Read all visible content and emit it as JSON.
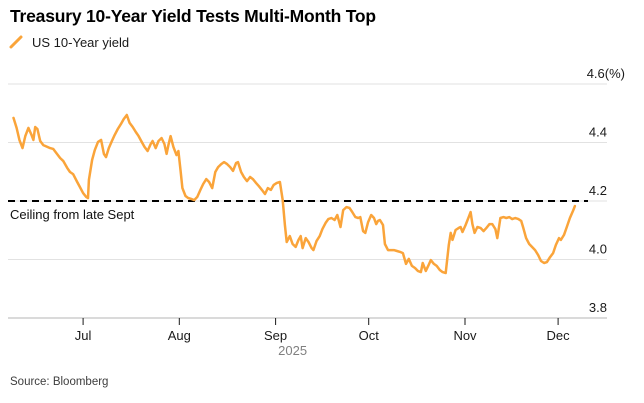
{
  "header": {
    "title": "Treasury 10-Year Yield Tests Multi-Month Top",
    "legend": {
      "marker_icon": "orange-slash-line-marker",
      "label": "US 10-Year yield"
    }
  },
  "footer": {
    "source": "Source: Bloomberg"
  },
  "colors": {
    "series_orange": "#FAA43A",
    "gridline": "#e2e2e2",
    "axis_line": "#c4c4c4",
    "tick_mark": "#1a1a1a",
    "tick_label": "#1a1a1a",
    "year_label": "#808080",
    "ceiling_line": "#000000",
    "title_text": "#000000",
    "background": "#ffffff"
  },
  "chart_data": {
    "type": "line",
    "title": "Treasury 10-Year Yield Tests Multi-Month Top",
    "x_unit": "days since 2025-06-01 (mid-June 2025 through early December 2025)",
    "y_unit": "(%)",
    "ylim": [
      3.8,
      4.6
    ],
    "grid": "horizontal",
    "legend_position": "top-left",
    "x_ticks": [
      {
        "day": 30,
        "label": "Jul"
      },
      {
        "day": 61,
        "label": "Aug"
      },
      {
        "day": 92,
        "label": "Sep"
      },
      {
        "day": 122,
        "label": "Oct"
      },
      {
        "day": 153,
        "label": "Nov"
      },
      {
        "day": 183,
        "label": "Dec"
      }
    ],
    "x_year_label": "2025",
    "y_ticks": [
      4.6,
      4.4,
      4.2,
      4.0,
      3.8
    ],
    "ceiling": {
      "value": 4.2,
      "label": "Ceiling from late Sept",
      "style": "dashed-black"
    },
    "series": [
      {
        "name": "US 10-Year yield",
        "color": "#FAA43A",
        "points": [
          [
            7.6,
            4.484
          ],
          [
            8.6,
            4.45
          ],
          [
            9.5,
            4.409
          ],
          [
            10.5,
            4.381
          ],
          [
            11.4,
            4.422
          ],
          [
            12.4,
            4.45
          ],
          [
            13.4,
            4.426
          ],
          [
            14.0,
            4.409
          ],
          [
            14.6,
            4.453
          ],
          [
            15.3,
            4.446
          ],
          [
            16.2,
            4.405
          ],
          [
            17.2,
            4.391
          ],
          [
            18.5,
            4.385
          ],
          [
            19.4,
            4.381
          ],
          [
            20.4,
            4.378
          ],
          [
            21.4,
            4.364
          ],
          [
            22.6,
            4.347
          ],
          [
            23.6,
            4.337
          ],
          [
            24.9,
            4.313
          ],
          [
            25.8,
            4.299
          ],
          [
            26.8,
            4.292
          ],
          [
            28.1,
            4.265
          ],
          [
            29.0,
            4.248
          ],
          [
            30.0,
            4.227
          ],
          [
            31.0,
            4.214
          ],
          [
            31.6,
            4.21
          ],
          [
            31.9,
            4.272
          ],
          [
            32.9,
            4.34
          ],
          [
            33.8,
            4.374
          ],
          [
            34.8,
            4.402
          ],
          [
            35.8,
            4.409
          ],
          [
            36.7,
            4.361
          ],
          [
            37.4,
            4.35
          ],
          [
            38.3,
            4.381
          ],
          [
            39.3,
            4.405
          ],
          [
            40.2,
            4.426
          ],
          [
            41.2,
            4.446
          ],
          [
            42.2,
            4.463
          ],
          [
            43.1,
            4.48
          ],
          [
            44.1,
            4.494
          ],
          [
            45.0,
            4.467
          ],
          [
            46.0,
            4.453
          ],
          [
            47.0,
            4.436
          ],
          [
            47.9,
            4.422
          ],
          [
            48.9,
            4.402
          ],
          [
            49.8,
            4.385
          ],
          [
            50.8,
            4.371
          ],
          [
            51.8,
            4.395
          ],
          [
            52.4,
            4.405
          ],
          [
            53.4,
            4.381
          ],
          [
            54.3,
            4.405
          ],
          [
            55.3,
            4.415
          ],
          [
            56.2,
            4.395
          ],
          [
            56.9,
            4.361
          ],
          [
            57.5,
            4.391
          ],
          [
            58.2,
            4.422
          ],
          [
            59.1,
            4.385
          ],
          [
            60.1,
            4.357
          ],
          [
            60.7,
            4.371
          ],
          [
            61.4,
            4.306
          ],
          [
            62.0,
            4.244
          ],
          [
            63.0,
            4.217
          ],
          [
            63.9,
            4.21
          ],
          [
            64.9,
            4.207
          ],
          [
            65.8,
            4.203
          ],
          [
            66.8,
            4.214
          ],
          [
            67.8,
            4.238
          ],
          [
            68.7,
            4.258
          ],
          [
            69.7,
            4.275
          ],
          [
            70.6,
            4.265
          ],
          [
            71.6,
            4.244
          ],
          [
            72.6,
            4.299
          ],
          [
            73.5,
            4.316
          ],
          [
            74.5,
            4.326
          ],
          [
            75.4,
            4.333
          ],
          [
            76.4,
            4.326
          ],
          [
            77.4,
            4.316
          ],
          [
            78.3,
            4.303
          ],
          [
            79.3,
            4.33
          ],
          [
            79.9,
            4.333
          ],
          [
            80.9,
            4.299
          ],
          [
            81.8,
            4.282
          ],
          [
            82.8,
            4.268
          ],
          [
            83.8,
            4.282
          ],
          [
            84.7,
            4.275
          ],
          [
            85.7,
            4.262
          ],
          [
            86.6,
            4.251
          ],
          [
            87.6,
            4.238
          ],
          [
            88.6,
            4.224
          ],
          [
            89.5,
            4.244
          ],
          [
            90.5,
            4.238
          ],
          [
            91.4,
            4.255
          ],
          [
            92.4,
            4.262
          ],
          [
            93.4,
            4.265
          ],
          [
            94.3,
            4.203
          ],
          [
            95.0,
            4.118
          ],
          [
            95.6,
            4.06
          ],
          [
            96.6,
            4.08
          ],
          [
            97.5,
            4.053
          ],
          [
            98.5,
            4.043
          ],
          [
            99.4,
            4.067
          ],
          [
            100.1,
            4.08
          ],
          [
            100.7,
            4.039
          ],
          [
            101.7,
            4.073
          ],
          [
            102.6,
            4.06
          ],
          [
            103.6,
            4.039
          ],
          [
            104.2,
            4.032
          ],
          [
            105.2,
            4.063
          ],
          [
            106.2,
            4.08
          ],
          [
            107.1,
            4.104
          ],
          [
            108.1,
            4.125
          ],
          [
            109.0,
            4.138
          ],
          [
            110.0,
            4.142
          ],
          [
            111.0,
            4.135
          ],
          [
            111.9,
            4.152
          ],
          [
            112.9,
            4.111
          ],
          [
            113.8,
            4.169
          ],
          [
            114.8,
            4.179
          ],
          [
            115.8,
            4.176
          ],
          [
            116.7,
            4.162
          ],
          [
            117.7,
            4.145
          ],
          [
            118.6,
            4.142
          ],
          [
            119.3,
            4.145
          ],
          [
            120.2,
            4.097
          ],
          [
            120.9,
            4.091
          ],
          [
            121.8,
            4.128
          ],
          [
            122.8,
            4.152
          ],
          [
            123.7,
            4.142
          ],
          [
            124.4,
            4.121
          ],
          [
            125.0,
            4.132
          ],
          [
            125.6,
            4.135
          ],
          [
            126.6,
            4.118
          ],
          [
            127.2,
            4.053
          ],
          [
            128.2,
            4.032
          ],
          [
            130.1,
            4.032
          ],
          [
            131.1,
            4.029
          ],
          [
            132.1,
            4.026
          ],
          [
            133.0,
            4.022
          ],
          [
            134.0,
            3.985
          ],
          [
            134.9,
            4.002
          ],
          [
            135.9,
            3.978
          ],
          [
            136.9,
            3.971
          ],
          [
            137.8,
            3.961
          ],
          [
            138.8,
            3.957
          ],
          [
            139.4,
            3.988
          ],
          [
            140.4,
            3.961
          ],
          [
            141.3,
            3.981
          ],
          [
            142.0,
            3.998
          ],
          [
            143.0,
            3.985
          ],
          [
            143.9,
            3.978
          ],
          [
            144.9,
            3.964
          ],
          [
            145.8,
            3.957
          ],
          [
            146.8,
            3.954
          ],
          [
            147.8,
            4.05
          ],
          [
            148.4,
            4.091
          ],
          [
            149.0,
            4.067
          ],
          [
            150.0,
            4.101
          ],
          [
            151.0,
            4.108
          ],
          [
            151.6,
            4.111
          ],
          [
            152.2,
            4.094
          ],
          [
            153.2,
            4.118
          ],
          [
            154.2,
            4.145
          ],
          [
            154.8,
            4.162
          ],
          [
            155.4,
            4.121
          ],
          [
            156.1,
            4.091
          ],
          [
            157.0,
            4.111
          ],
          [
            158.0,
            4.108
          ],
          [
            159.0,
            4.097
          ],
          [
            159.9,
            4.108
          ],
          [
            160.9,
            4.121
          ],
          [
            161.8,
            4.121
          ],
          [
            162.8,
            4.104
          ],
          [
            163.4,
            4.073
          ],
          [
            164.4,
            4.142
          ],
          [
            165.4,
            4.145
          ],
          [
            166.3,
            4.142
          ],
          [
            167.3,
            4.145
          ],
          [
            168.2,
            4.138
          ],
          [
            169.2,
            4.142
          ],
          [
            170.2,
            4.138
          ],
          [
            171.1,
            4.132
          ],
          [
            171.8,
            4.108
          ],
          [
            172.7,
            4.073
          ],
          [
            173.7,
            4.053
          ],
          [
            174.6,
            4.043
          ],
          [
            175.6,
            4.032
          ],
          [
            176.6,
            4.015
          ],
          [
            177.5,
            3.995
          ],
          [
            178.5,
            3.988
          ],
          [
            179.4,
            3.991
          ],
          [
            180.4,
            4.008
          ],
          [
            181.4,
            4.022
          ],
          [
            182.3,
            4.05
          ],
          [
            183.3,
            4.073
          ],
          [
            183.9,
            4.067
          ],
          [
            184.9,
            4.084
          ],
          [
            185.8,
            4.111
          ],
          [
            186.8,
            4.142
          ],
          [
            187.8,
            4.166
          ],
          [
            188.4,
            4.183
          ]
        ]
      }
    ]
  }
}
